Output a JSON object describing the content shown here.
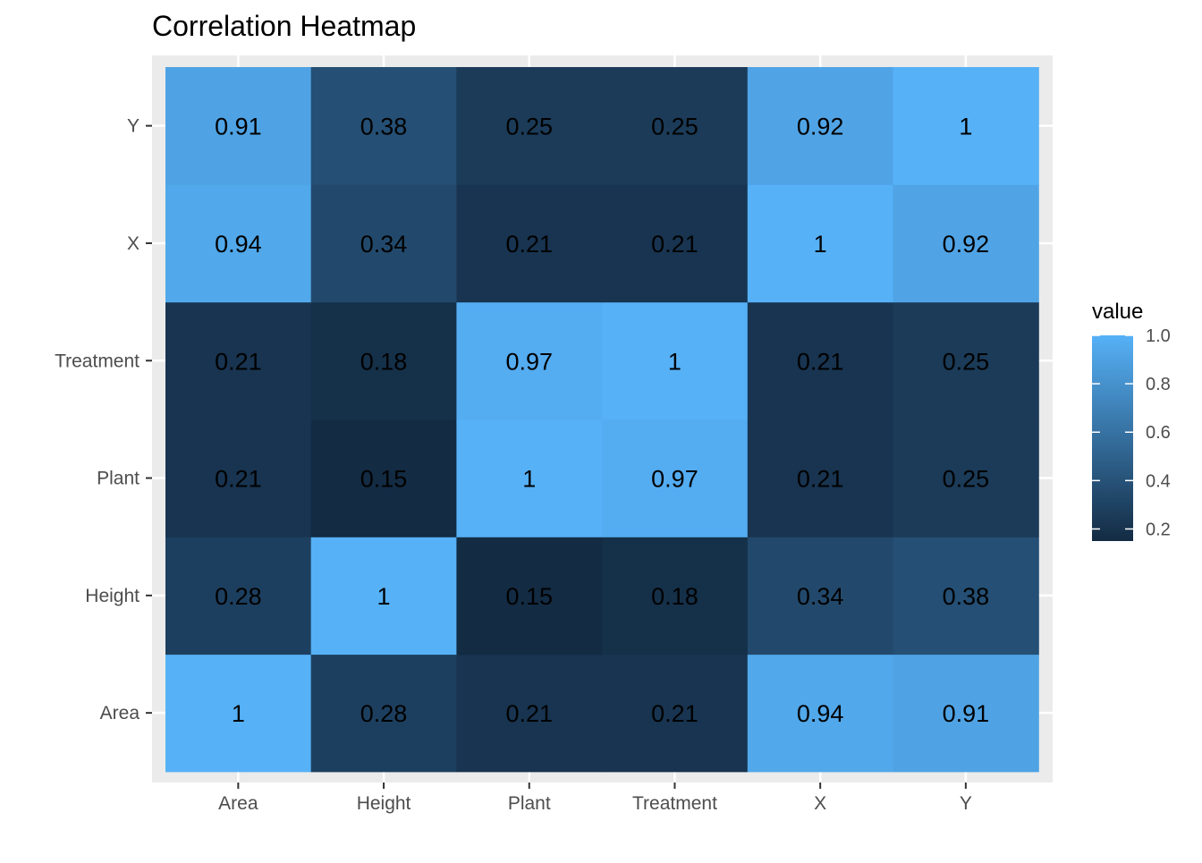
{
  "chart_data": {
    "type": "heatmap",
    "title": "Correlation Heatmap",
    "x_categories": [
      "Area",
      "Height",
      "Plant",
      "Treatment",
      "X",
      "Y"
    ],
    "y_categories": [
      "Area",
      "Height",
      "Plant",
      "Treatment",
      "X",
      "Y"
    ],
    "values": [
      [
        1,
        0.28,
        0.21,
        0.21,
        0.94,
        0.91
      ],
      [
        0.28,
        1,
        0.15,
        0.18,
        0.34,
        0.38
      ],
      [
        0.21,
        0.15,
        1,
        0.97,
        0.21,
        0.25
      ],
      [
        0.21,
        0.18,
        0.97,
        1,
        0.21,
        0.25
      ],
      [
        0.94,
        0.34,
        0.21,
        0.21,
        1,
        0.92
      ],
      [
        0.91,
        0.38,
        0.25,
        0.25,
        0.92,
        1
      ]
    ],
    "cell_labels": [
      [
        "1",
        "0.28",
        "0.21",
        "0.21",
        "0.94",
        "0.91"
      ],
      [
        "0.28",
        "1",
        "0.15",
        "0.18",
        "0.34",
        "0.38"
      ],
      [
        "0.21",
        "0.15",
        "1",
        "0.97",
        "0.21",
        "0.25"
      ],
      [
        "0.21",
        "0.18",
        "0.97",
        "1",
        "0.21",
        "0.25"
      ],
      [
        "0.94",
        "0.34",
        "0.21",
        "0.21",
        "1",
        "0.92"
      ],
      [
        "0.91",
        "0.38",
        "0.25",
        "0.25",
        "0.92",
        "1"
      ]
    ],
    "legend": {
      "title": "value",
      "ticks": [
        "1.0",
        "0.8",
        "0.6",
        "0.4",
        "0.2"
      ],
      "tick_values": [
        1.0,
        0.8,
        0.6,
        0.4,
        0.2
      ],
      "range": [
        0.15,
        1.0
      ],
      "placement": "right"
    },
    "colors": {
      "low": "#132b43",
      "high": "#56b1f7",
      "panel_background": "#ebebeb",
      "grid": "#ffffff"
    },
    "grid": true
  }
}
